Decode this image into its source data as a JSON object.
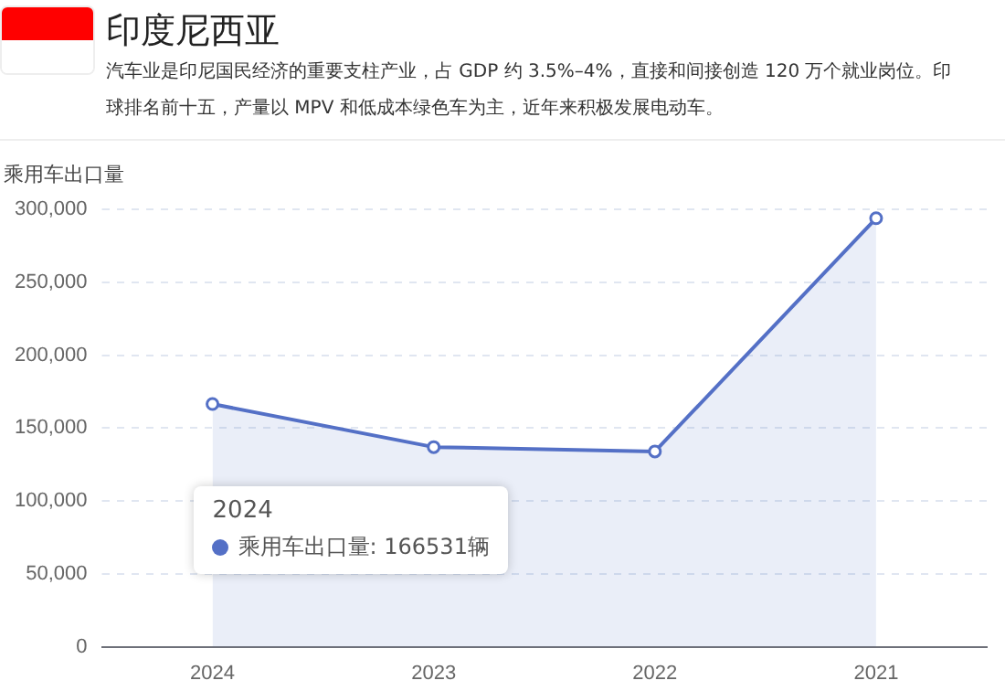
{
  "chart_data": {
    "type": "area",
    "title": "印度尼西亚",
    "subtitle": "汽车业是印尼国民经济的重要支柱产业，占 GDP 约 3.5%–4%，直接和间接创造 120 万个就业岗位。印",
    "ylabel": "乘用车出口量",
    "categories": [
      "2024",
      "2023",
      "2022",
      "2021"
    ],
    "series": [
      {
        "color": "#5470c6",
        "values": [
          166531,
          137000,
          134000,
          294000
        ]
      }
    ],
    "ylim": [
      0,
      300000
    ],
    "yticks": [
      {
        "value": 0,
        "label": "0"
      },
      {
        "value": 50000,
        "label": "50,000"
      },
      {
        "value": 100000,
        "label": "100,000"
      },
      {
        "value": 150000,
        "label": "150,000"
      },
      {
        "value": 200000,
        "label": "200,000"
      },
      {
        "value": 250000,
        "label": "250,000"
      },
      {
        "value": 300000,
        "label": "300,000"
      }
    ],
    "grid": "y",
    "legend": false,
    "marker": "circle",
    "annotations": [
      "球排名前十五，产量以 MPV 和低成本绿色车为主，近年来积极发展电动车。",
      "2024",
      "乘用车出口量: 166531辆"
    ]
  }
}
